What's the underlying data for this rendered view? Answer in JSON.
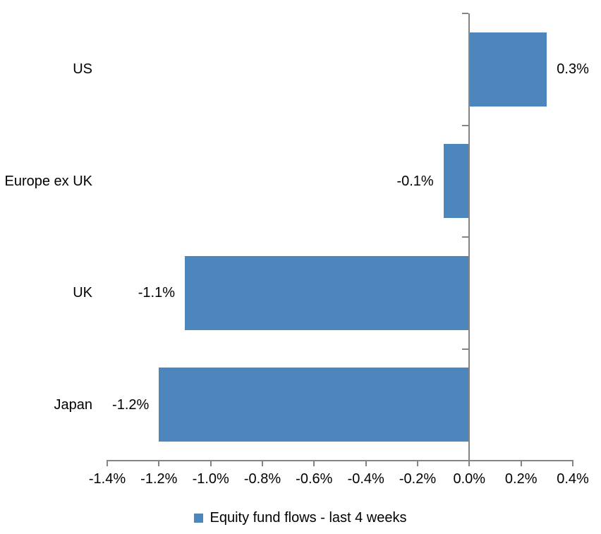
{
  "chart_data": {
    "type": "bar",
    "orientation": "horizontal",
    "title": "",
    "categories": [
      "US",
      "Europe ex UK",
      "UK",
      "Japan"
    ],
    "values": [
      0.3,
      -0.1,
      -1.1,
      -1.2
    ],
    "value_unit": "%",
    "data_labels": [
      "0.3%",
      "-0.1%",
      "-1.1%",
      "-1.2%"
    ],
    "series": [
      {
        "name": "Equity fund flows - last 4 weeks",
        "values": [
          0.3,
          -0.1,
          -1.1,
          -1.2
        ]
      }
    ],
    "xlabel": "",
    "ylabel": "",
    "xlim": [
      -1.4,
      0.4
    ],
    "x_ticks": [
      -1.4,
      -1.2,
      -1.0,
      -0.8,
      -0.6,
      -0.4,
      -0.2,
      0.0,
      0.2,
      0.4
    ],
    "x_tick_labels": [
      "-1.4%",
      "-1.2%",
      "-1.0%",
      "-0.8%",
      "-0.6%",
      "-0.4%",
      "-0.2%",
      "0.0%",
      "0.2%",
      "0.4%"
    ],
    "grid": false,
    "legend": {
      "label": "Equity fund flows - last 4 weeks",
      "position": "bottom"
    },
    "colors": {
      "bar": "#4D86BC",
      "axis": "#858585",
      "text": "#000000",
      "background": "#FFFFFF"
    }
  }
}
